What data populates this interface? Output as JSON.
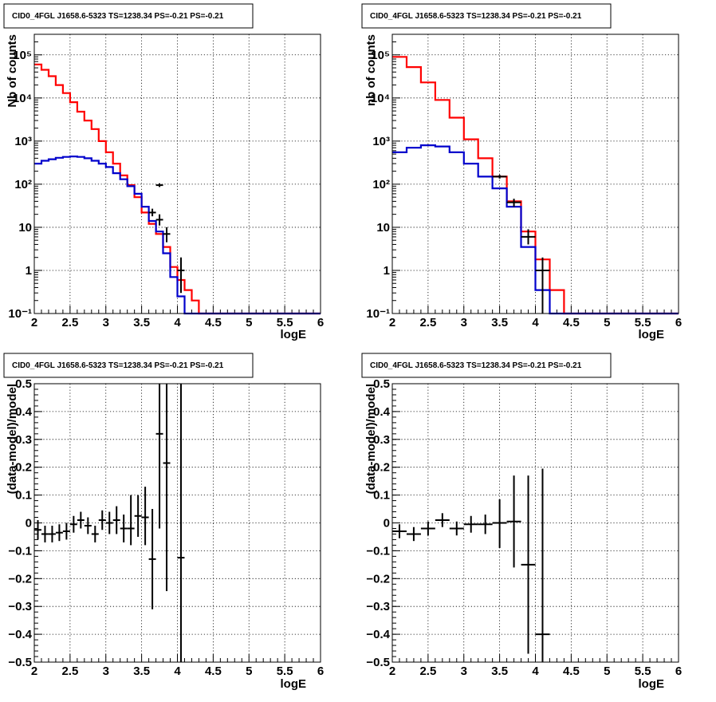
{
  "chart_data": [
    {
      "title": "CID0_4FGL J1658.6-5323 TS=1238.34 PS=-0.21 PS=-0.21",
      "type": "line",
      "xlabel": "logE",
      "ylabel": "Nb of counts",
      "xlim": [
        2,
        6
      ],
      "ylim": [
        0.1,
        300000
      ],
      "log_y": true,
      "grid": true,
      "x_ticks": [
        "2",
        "2.5",
        "3",
        "3.5",
        "4",
        "4.5",
        "5",
        "5.5",
        "6"
      ],
      "y_ticks": [
        "10⁻¹",
        "1",
        "10",
        "10²",
        "10³",
        "10⁴",
        "10⁵"
      ],
      "bin_edges": [
        2.0,
        2.1,
        2.2,
        2.3,
        2.4,
        2.5,
        2.6,
        2.7,
        2.8,
        2.9,
        3.0,
        3.1,
        3.2,
        3.3,
        3.4,
        3.5,
        3.6,
        3.7,
        3.8,
        3.9,
        4.0,
        4.1,
        4.2,
        4.3,
        4.4,
        4.5,
        4.6,
        4.7,
        4.8,
        4.9,
        5.0,
        5.1,
        5.2,
        5.3,
        5.4,
        5.5,
        5.6,
        5.7,
        5.8,
        5.9,
        6.0
      ],
      "series": [
        {
          "color": "#ff0000",
          "values": [
            60000,
            45000,
            32000,
            20000,
            13000,
            8000,
            4800,
            3000,
            1900,
            1000,
            550,
            300,
            160,
            95,
            50,
            22,
            12,
            7,
            3.5,
            1.2,
            0.6,
            0.35,
            0.2,
            0.1,
            0.1,
            0.1,
            0.1,
            0.1,
            0.1,
            0.1,
            0.1,
            0.1,
            0.1,
            0.1,
            0.1,
            0.1,
            0.1,
            0.1,
            0.1,
            0.1
          ]
        },
        {
          "color": "#0000cc",
          "values": [
            300,
            350,
            380,
            410,
            430,
            440,
            430,
            400,
            350,
            300,
            250,
            180,
            130,
            90,
            60,
            30,
            14,
            8,
            2.5,
            0.7,
            0.25,
            0.1,
            0.1,
            0.1,
            0.1,
            0.1,
            0.1,
            0.1,
            0.1,
            0.1,
            0.1,
            0.1,
            0.1,
            0.1,
            0.1,
            0.1,
            0.1,
            0.1,
            0.1,
            0.1
          ]
        }
      ],
      "points": [
        {
          "x": 3.75,
          "y": 95,
          "xerr": 0.05,
          "ylo": 86,
          "yhi": 105
        },
        {
          "x": 3.65,
          "y": 22,
          "xerr": 0.05,
          "ylo": 18,
          "yhi": 27
        },
        {
          "x": 3.75,
          "y": 15,
          "xerr": 0.05,
          "ylo": 11,
          "yhi": 20
        },
        {
          "x": 3.85,
          "y": 7,
          "xerr": 0.05,
          "ylo": 4.5,
          "yhi": 10
        },
        {
          "x": 4.05,
          "y": 1,
          "xerr": 0.05,
          "ylo": 0.3,
          "yhi": 2
        }
      ]
    },
    {
      "title": "CID0_4FGL J1658.6-5323 TS=1238.34 PS=-0.21 PS=-0.21",
      "type": "line",
      "xlabel": "logE",
      "ylabel": "nb of counts",
      "xlim": [
        2,
        6
      ],
      "ylim": [
        0.1,
        300000
      ],
      "log_y": true,
      "grid": true,
      "x_ticks": [
        "2",
        "2.5",
        "3",
        "3.5",
        "4",
        "4.5",
        "5",
        "5.5",
        "6"
      ],
      "y_ticks": [
        "10⁻¹",
        "1",
        "10",
        "10²",
        "10³",
        "10⁴",
        "10⁵"
      ],
      "bin_edges": [
        2.0,
        2.2,
        2.4,
        2.6,
        2.8,
        3.0,
        3.2,
        3.4,
        3.6,
        3.8,
        4.0,
        4.2,
        4.4,
        4.6,
        4.8,
        5.0,
        5.2,
        5.4,
        5.6,
        5.8,
        6.0
      ],
      "series": [
        {
          "color": "#ff0000",
          "values": [
            90000,
            52000,
            23000,
            9000,
            3500,
            1100,
            400,
            150,
            40,
            8,
            1.8,
            0.35,
            0.1,
            0.1,
            0.1,
            0.1,
            0.1,
            0.1,
            0.1,
            0.1
          ]
        },
        {
          "color": "#0000cc",
          "values": [
            550,
            700,
            800,
            750,
            550,
            300,
            150,
            80,
            30,
            3.5,
            0.35,
            0.1,
            0.1,
            0.1,
            0.1,
            0.1,
            0.1,
            0.1,
            0.1,
            0.1
          ]
        }
      ],
      "points": [
        {
          "x": 3.5,
          "y": 150,
          "xerr": 0.1,
          "ylo": 135,
          "yhi": 165
        },
        {
          "x": 3.7,
          "y": 38,
          "xerr": 0.1,
          "ylo": 30,
          "yhi": 46
        },
        {
          "x": 3.9,
          "y": 6,
          "xerr": 0.1,
          "ylo": 4,
          "yhi": 9
        },
        {
          "x": 4.1,
          "y": 1,
          "xerr": 0.1,
          "ylo": 0.1,
          "yhi": 2
        }
      ]
    },
    {
      "title": "CID0_4FGL J1658.6-5323 TS=1238.34 PS=-0.21 PS=-0.21",
      "type": "scatter",
      "xlabel": "logE",
      "ylabel": "(data-model)/model",
      "xlim": [
        2,
        6
      ],
      "ylim": [
        -0.5,
        0.5
      ],
      "log_y": false,
      "grid": true,
      "x_ticks": [
        "2",
        "2.5",
        "3",
        "3.5",
        "4",
        "4.5",
        "5",
        "5.5",
        "6"
      ],
      "y_ticks": [
        "−0.5",
        "−0.4",
        "−0.3",
        "−0.2",
        "−0.1",
        "0",
        "0.1",
        "0.2",
        "0.3",
        "0.4",
        "0.5"
      ],
      "y_tick_values": [
        -0.5,
        -0.4,
        -0.3,
        -0.2,
        -0.1,
        0,
        0.1,
        0.2,
        0.3,
        0.4,
        0.5
      ],
      "points": [
        {
          "x": 2.05,
          "y": -0.025,
          "xerr": 0.05,
          "ylo": -0.06,
          "yhi": 0.01
        },
        {
          "x": 2.15,
          "y": -0.04,
          "xerr": 0.05,
          "ylo": -0.07,
          "yhi": -0.01
        },
        {
          "x": 2.25,
          "y": -0.04,
          "xerr": 0.05,
          "ylo": -0.07,
          "yhi": -0.01
        },
        {
          "x": 2.35,
          "y": -0.035,
          "xerr": 0.05,
          "ylo": -0.065,
          "yhi": -0.005
        },
        {
          "x": 2.45,
          "y": -0.03,
          "xerr": 0.05,
          "ylo": -0.06,
          "yhi": 0.0
        },
        {
          "x": 2.55,
          "y": -0.005,
          "xerr": 0.05,
          "ylo": -0.035,
          "yhi": 0.025
        },
        {
          "x": 2.65,
          "y": 0.01,
          "xerr": 0.05,
          "ylo": -0.02,
          "yhi": 0.04
        },
        {
          "x": 2.75,
          "y": -0.01,
          "xerr": 0.05,
          "ylo": -0.04,
          "yhi": 0.02
        },
        {
          "x": 2.85,
          "y": -0.04,
          "xerr": 0.05,
          "ylo": -0.07,
          "yhi": -0.01
        },
        {
          "x": 2.95,
          "y": 0.01,
          "xerr": 0.05,
          "ylo": -0.025,
          "yhi": 0.045
        },
        {
          "x": 3.05,
          "y": 0.0,
          "xerr": 0.05,
          "ylo": -0.04,
          "yhi": 0.04
        },
        {
          "x": 3.15,
          "y": 0.01,
          "xerr": 0.05,
          "ylo": -0.04,
          "yhi": 0.06
        },
        {
          "x": 3.25,
          "y": -0.02,
          "xerr": 0.05,
          "ylo": -0.07,
          "yhi": 0.03
        },
        {
          "x": 3.35,
          "y": -0.02,
          "xerr": 0.05,
          "ylo": -0.08,
          "yhi": 0.1
        },
        {
          "x": 3.45,
          "y": 0.025,
          "xerr": 0.05,
          "ylo": -0.05,
          "yhi": 0.1
        },
        {
          "x": 3.55,
          "y": 0.02,
          "xerr": 0.05,
          "ylo": -0.08,
          "yhi": 0.13
        },
        {
          "x": 3.65,
          "y": -0.13,
          "xerr": 0.05,
          "ylo": -0.31,
          "yhi": 0.05
        },
        {
          "x": 3.75,
          "y": 0.32,
          "xerr": 0.05,
          "ylo": -0.02,
          "yhi": 0.5
        },
        {
          "x": 3.85,
          "y": 0.215,
          "xerr": 0.05,
          "ylo": -0.245,
          "yhi": 0.5
        },
        {
          "x": 4.05,
          "y": -0.125,
          "xerr": 0.05,
          "ylo": -0.5,
          "yhi": 0.5
        }
      ]
    },
    {
      "title": "CID0_4FGL J1658.6-5323 TS=1238.34 PS=-0.21 PS=-0.21",
      "type": "scatter",
      "xlabel": "logE",
      "ylabel": "(data-model)/model",
      "xlim": [
        2,
        6
      ],
      "ylim": [
        -0.5,
        0.5
      ],
      "log_y": false,
      "grid": true,
      "x_ticks": [
        "2",
        "2.5",
        "3",
        "3.5",
        "4",
        "4.5",
        "5",
        "5.5",
        "6"
      ],
      "y_ticks": [
        "−0.5",
        "−0.4",
        "−0.3",
        "−0.2",
        "−0.1",
        "0",
        "0.1",
        "0.2",
        "0.3",
        "0.4",
        "0.5"
      ],
      "y_tick_values": [
        -0.5,
        -0.4,
        -0.3,
        -0.2,
        -0.1,
        0,
        0.1,
        0.2,
        0.3,
        0.4,
        0.5
      ],
      "points": [
        {
          "x": 2.1,
          "y": -0.03,
          "xerr": 0.1,
          "ylo": -0.055,
          "yhi": -0.005
        },
        {
          "x": 2.3,
          "y": -0.04,
          "xerr": 0.1,
          "ylo": -0.065,
          "yhi": -0.015
        },
        {
          "x": 2.5,
          "y": -0.02,
          "xerr": 0.1,
          "ylo": -0.045,
          "yhi": 0.005
        },
        {
          "x": 2.7,
          "y": 0.01,
          "xerr": 0.1,
          "ylo": -0.015,
          "yhi": 0.035
        },
        {
          "x": 2.9,
          "y": -0.02,
          "xerr": 0.1,
          "ylo": -0.045,
          "yhi": 0.005
        },
        {
          "x": 3.1,
          "y": -0.005,
          "xerr": 0.1,
          "ylo": -0.035,
          "yhi": 0.025
        },
        {
          "x": 3.3,
          "y": -0.005,
          "xerr": 0.1,
          "ylo": -0.04,
          "yhi": 0.03
        },
        {
          "x": 3.5,
          "y": 0.0,
          "xerr": 0.1,
          "ylo": -0.09,
          "yhi": 0.085
        },
        {
          "x": 3.7,
          "y": 0.005,
          "xerr": 0.1,
          "ylo": -0.16,
          "yhi": 0.17
        },
        {
          "x": 3.9,
          "y": -0.15,
          "xerr": 0.1,
          "ylo": -0.47,
          "yhi": 0.17
        },
        {
          "x": 4.1,
          "y": -0.4,
          "xerr": 0.1,
          "ylo": -0.5,
          "yhi": 0.195
        }
      ]
    }
  ]
}
